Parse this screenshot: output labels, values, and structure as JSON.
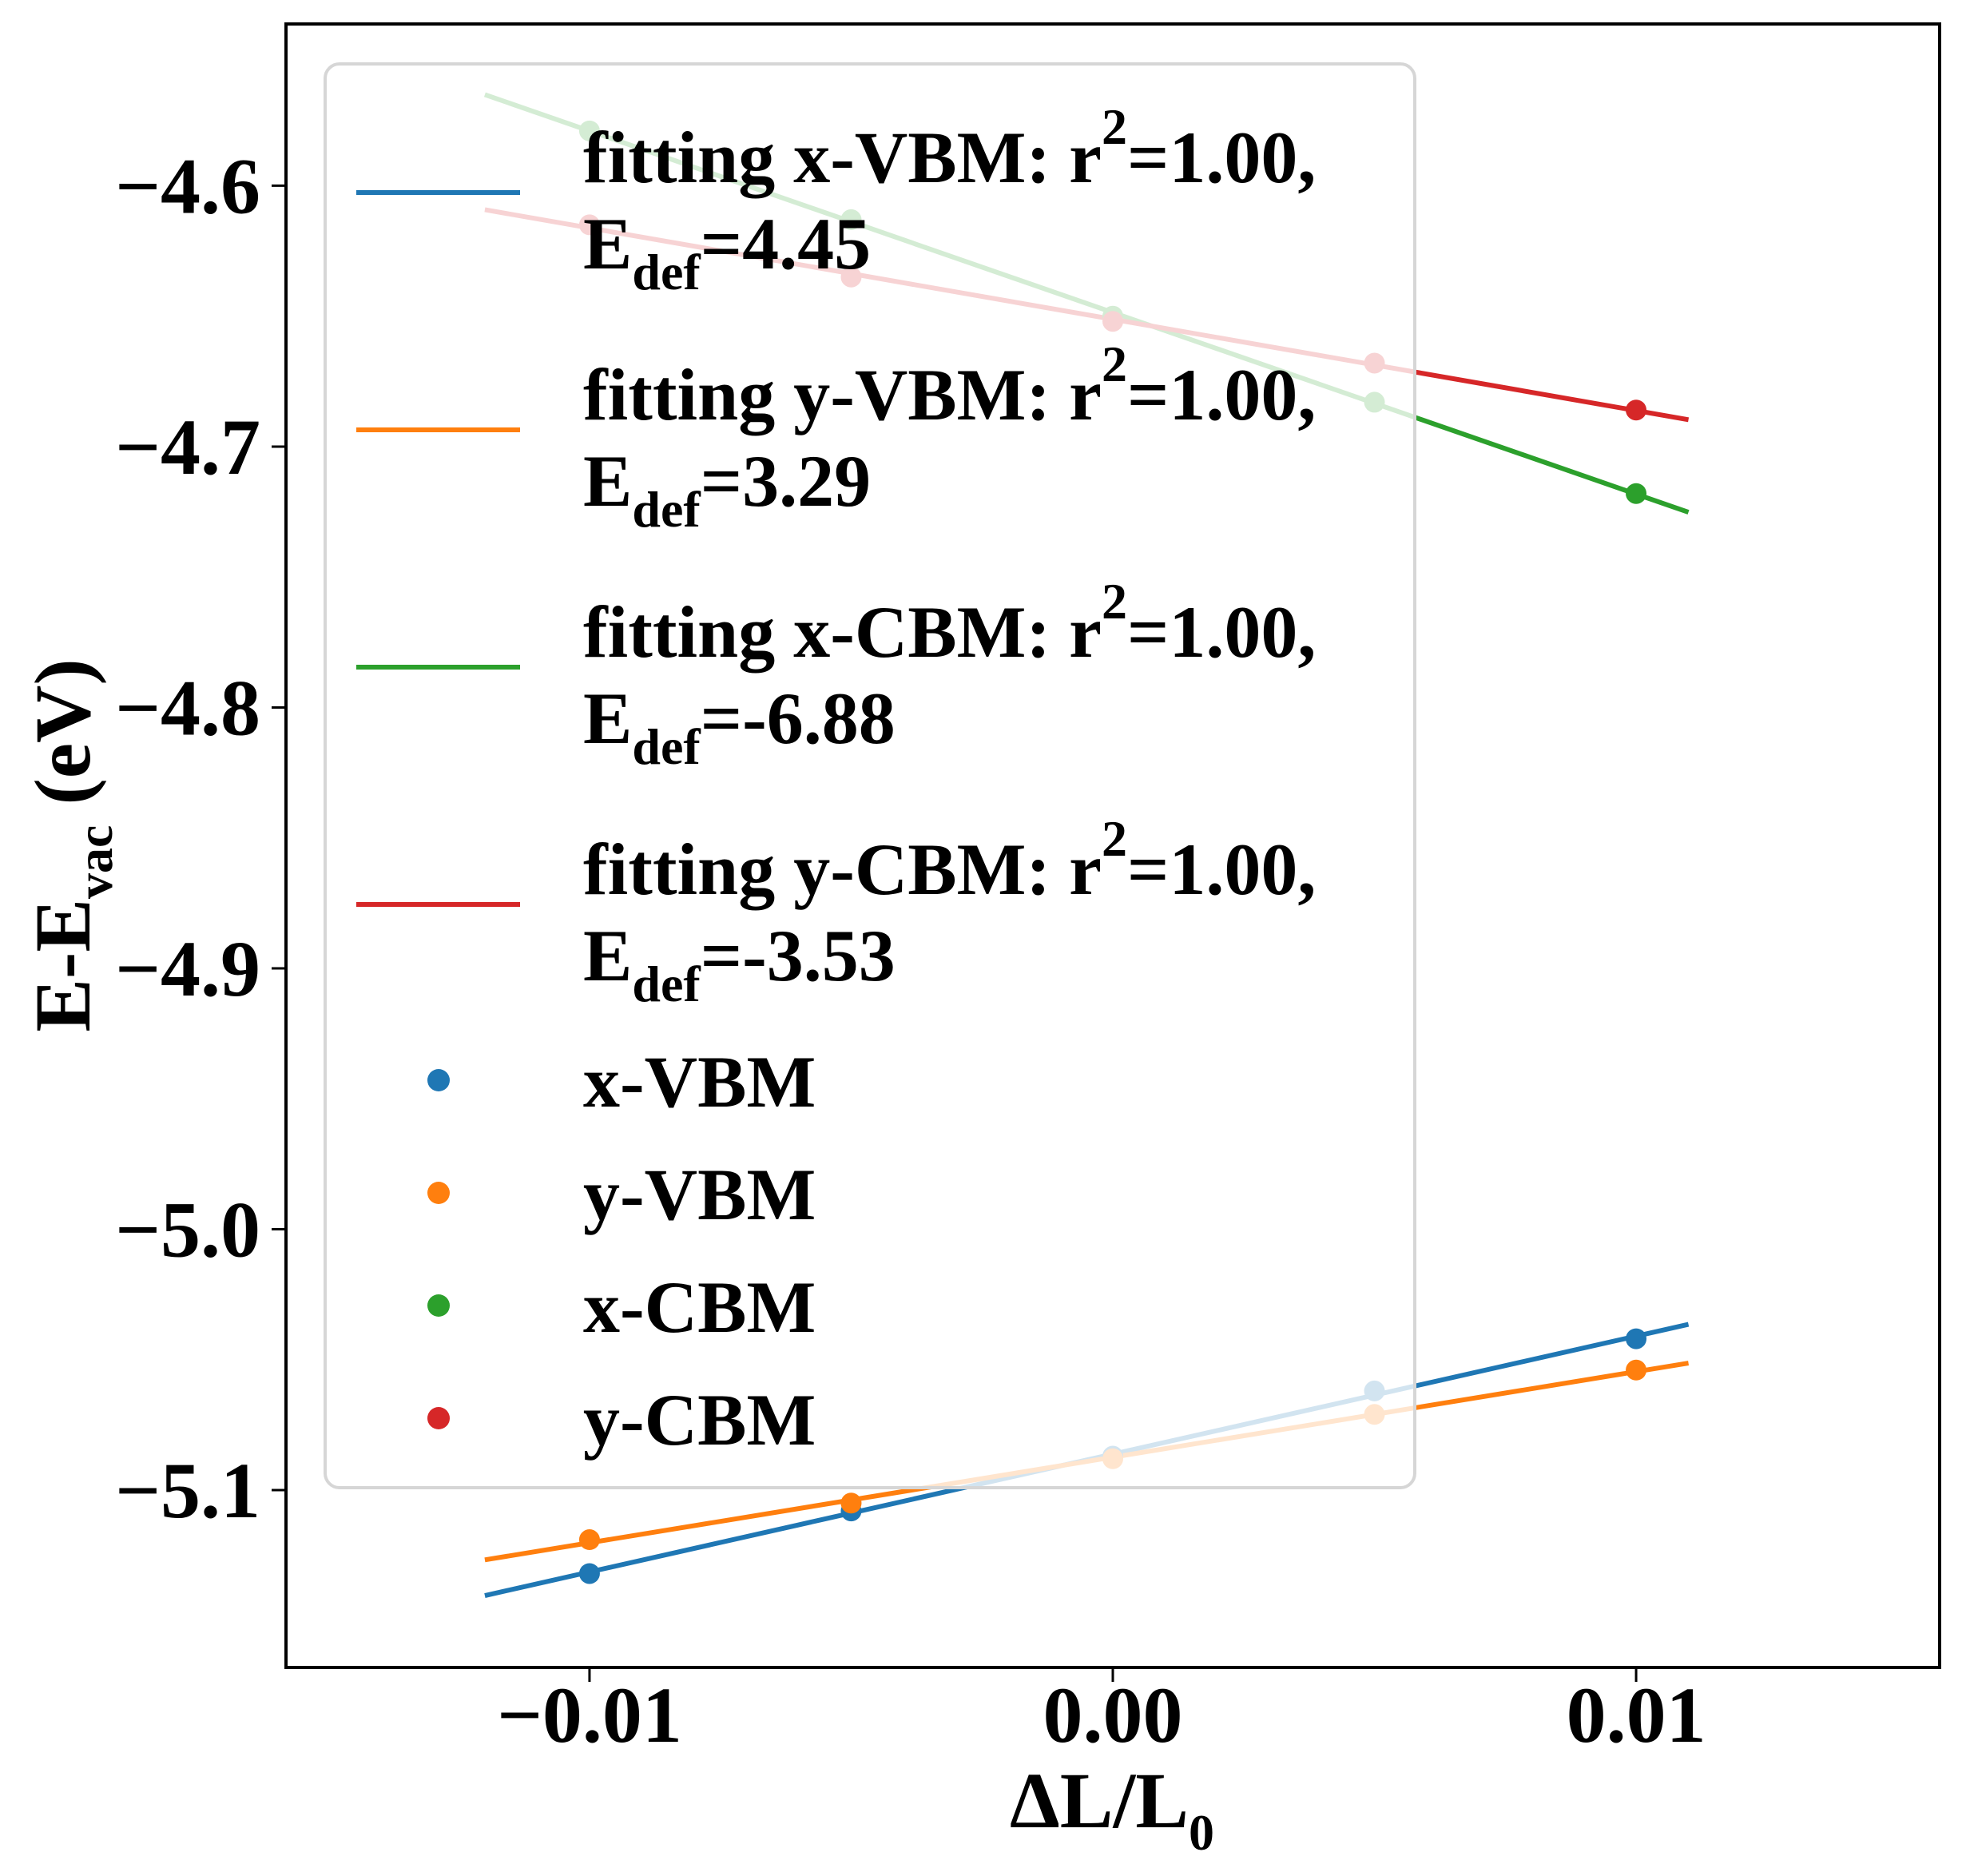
{
  "chart_data": {
    "type": "scatter",
    "title": "",
    "xlabel": "ΔL/L",
    "xlabel_sub": "0",
    "ylabel": "E-E",
    "ylabel_sub": "vac",
    "ylabel_suffix": " (eV)",
    "xlim": [
      -0.0158,
      0.0158
    ],
    "ylim": [
      -5.168,
      -4.538
    ],
    "grid": false,
    "x_ticks": [
      {
        "value": -0.01,
        "label": "−0.01"
      },
      {
        "value": 0.0,
        "label": "0.00"
      },
      {
        "value": 0.01,
        "label": "0.01"
      }
    ],
    "y_ticks": [
      {
        "value": -4.6,
        "label": "−4.6"
      },
      {
        "value": -4.7,
        "label": "−4.7"
      },
      {
        "value": -4.8,
        "label": "−4.8"
      },
      {
        "value": -4.9,
        "label": "−4.9"
      },
      {
        "value": -5.0,
        "label": "−5.0"
      },
      {
        "value": -5.1,
        "label": "−5.1"
      }
    ],
    "x": [
      -0.01,
      -0.005,
      0.0,
      0.005,
      0.01
    ],
    "fit_range": [
      -0.012,
      0.011
    ],
    "series": [
      {
        "name": "x-VBM",
        "color": "#1f77b4",
        "values": [
          -5.132,
          -5.108,
          -5.087,
          -5.062,
          -5.042
        ],
        "fit_label": "fitting x-VBM: r",
        "r2": "=1.00,",
        "edef": "=4.45",
        "slope": 4.45
      },
      {
        "name": "y-VBM",
        "color": "#ff7f0e",
        "values": [
          -5.119,
          -5.105,
          -5.088,
          -5.071,
          -5.054
        ],
        "fit_label": "fitting y-VBM: r",
        "r2": "=1.00,",
        "edef": "=3.29",
        "slope": 3.29
      },
      {
        "name": "x-CBM",
        "color": "#2ca02c",
        "values": [
          -4.579,
          -4.613,
          -4.65,
          -4.683,
          -4.718
        ],
        "fit_label": "fitting x-CBM: r",
        "r2": "=1.00,",
        "edef": "=-6.88",
        "slope": -6.88
      },
      {
        "name": "y-CBM",
        "color": "#d62728",
        "values": [
          -4.615,
          -4.635,
          -4.652,
          -4.668,
          -4.686
        ],
        "fit_label": "fitting y-CBM: r",
        "r2": "=1.00,",
        "edef": "=-3.53",
        "slope": -3.53
      }
    ],
    "legend": {
      "placement": "upper-left",
      "sup_text": "2",
      "edef_prefix": "E",
      "edef_sub": "def"
    }
  }
}
